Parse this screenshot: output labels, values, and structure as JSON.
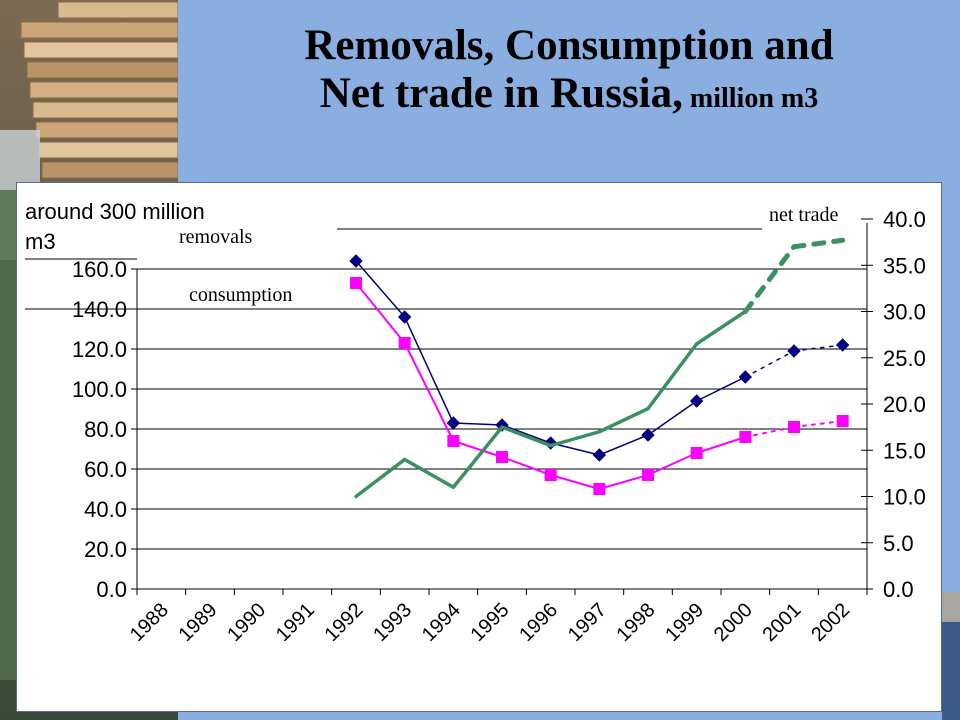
{
  "slide": {
    "title_line1": "Removals, Consumption and",
    "title_line2": "Net trade  in Russia,",
    "title_unit": " million m3"
  },
  "chart_data": {
    "type": "line",
    "categories": [
      "1988",
      "1989",
      "1990",
      "1991",
      "1992",
      "1993",
      "1994",
      "1995",
      "1996",
      "1997",
      "1998",
      "1999",
      "2000",
      "2001",
      "2002"
    ],
    "left_axis": {
      "ylim": [
        0,
        160
      ],
      "ticks": [
        "0.0",
        "20.0",
        "40.0",
        "60.0",
        "80.0",
        "100.0",
        "120.0",
        "140.0",
        "160.0"
      ]
    },
    "right_axis": {
      "ylim": [
        0,
        40
      ],
      "ticks": [
        "0.0",
        "5.0",
        "10.0",
        "15.0",
        "20.0",
        "25.0",
        "30.0",
        "35.0",
        "40.0"
      ]
    },
    "series": [
      {
        "key": "removals",
        "axis": "left",
        "color": "#000080",
        "marker": "diamond",
        "values": [
          null,
          null,
          null,
          null,
          164,
          136,
          83,
          82,
          73,
          67,
          77,
          94,
          106,
          119,
          122
        ],
        "projected_from_index": 12
      },
      {
        "key": "consumption",
        "axis": "left",
        "color": "#ff00ff",
        "marker": "square",
        "values": [
          null,
          null,
          null,
          null,
          153,
          123,
          74,
          66,
          57,
          50,
          57,
          68,
          76,
          81,
          84
        ],
        "projected_from_index": 12
      },
      {
        "key": "net_trade",
        "axis": "right",
        "color": "#3a9060",
        "marker": "none",
        "values": [
          null,
          null,
          null,
          null,
          10,
          14,
          11,
          17.5,
          15.5,
          17,
          19.5,
          26.5,
          30,
          37,
          37.7
        ],
        "projected_from_index": 12
      }
    ],
    "annotations": {
      "around": "around 300 million",
      "around_cut": "m3",
      "removals": "removals",
      "consumption": "consumption",
      "net_trade": "net trade"
    },
    "grid": "horizontal",
    "legend": "none"
  }
}
